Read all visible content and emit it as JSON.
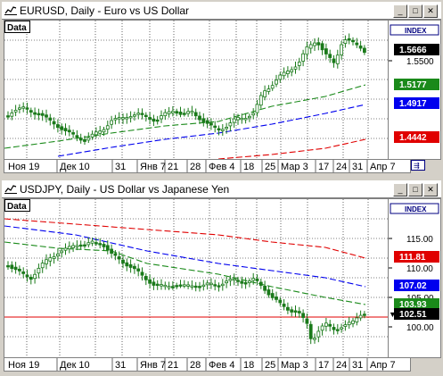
{
  "windows": [
    {
      "id": "eurusd",
      "title": "EURUSD, Daily - Euro vs US Dollar",
      "data_label": "Data",
      "index_label": "INDEX",
      "price_ticks": [
        "1.5500"
      ],
      "badges": [
        {
          "text": "1.5666",
          "color": "#000000"
        },
        {
          "text": "1.5177",
          "color": "#1a8a1a"
        },
        {
          "text": "1.4917",
          "color": "#0000ee"
        },
        {
          "text": "1.4442",
          "color": "#e00000"
        }
      ],
      "xlabels": [
        "Ноя 19",
        "Дек 10",
        "31",
        "Янв 7",
        "21",
        "28",
        "Фев 4",
        "18",
        "25",
        "Мар 3",
        "17",
        "24",
        "31",
        "Апр 7"
      ]
    },
    {
      "id": "usdjpy",
      "title": "USDJPY, Daily - US Dollar vs Japanese Yen",
      "data_label": "Data",
      "index_label": "INDEX",
      "price_ticks": [
        "115.00",
        "110.00",
        "105.00",
        "100.00"
      ],
      "badges": [
        {
          "text": "111.81",
          "color": "#e00000"
        },
        {
          "text": "107.02",
          "color": "#0000ee"
        },
        {
          "text": "103.93",
          "color": "#1a8a1a"
        },
        {
          "text": "102.51",
          "color": "#000000"
        }
      ],
      "xlabels": [
        "Ноя 19",
        "Дек 10",
        "31",
        "Янв 7",
        "21",
        "28",
        "Фев 4",
        "18",
        "25",
        "Мар 3",
        "17",
        "24",
        "31",
        "Апр 7"
      ]
    }
  ],
  "colors": {
    "candle": "#1a7a1a",
    "ma_green": "#1a8a1a",
    "ma_blue": "#0000ee",
    "ma_red": "#e00000",
    "hline": "#e00000"
  },
  "buttons": {
    "minimize": "_",
    "maximize": "□",
    "close": "✕"
  }
}
